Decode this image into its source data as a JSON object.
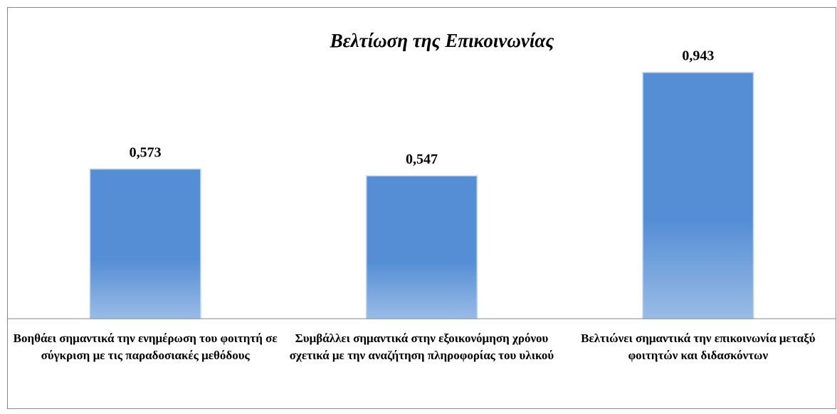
{
  "chart_data": {
    "type": "bar",
    "title": "Βελτίωση της Επικοινωνίας",
    "categories": [
      "Βοηθάει σημαντικά την ενημέρωση του φοιτητή σε σύγκριση με τις παραδοσιακές μεθόδους",
      "Συμβάλλει σημαντικά στην εξοικονόμηση χρόνου σχετικά με την αναζήτηση πληροφορίας του υλικού",
      "Βελτιώνει σημαντικά την επικοινωνία μεταξύ φοιτητών και διδασκόντων"
    ],
    "values": [
      0.573,
      0.547,
      0.943
    ],
    "value_labels": [
      "0,573",
      "0,547",
      "0,943"
    ],
    "color": "#558ed5",
    "ylim": [
      0,
      1
    ]
  }
}
